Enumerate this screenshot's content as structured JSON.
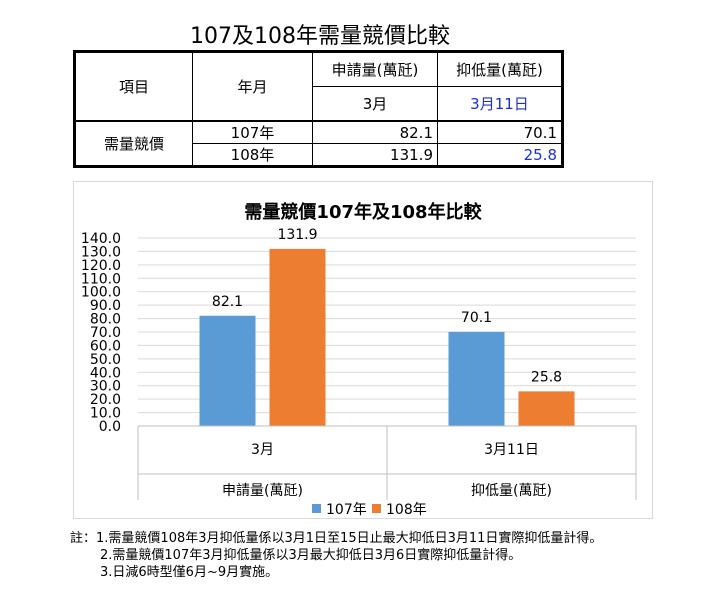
{
  "page": {
    "title": "107及108年需量競價比較"
  },
  "table": {
    "header": {
      "item": "項目",
      "month": "年月",
      "col1": "申請量(萬瓩)",
      "col2": "抑低量(萬瓩)"
    },
    "subheader": {
      "col1": "3月",
      "col2": "3月11日"
    },
    "row_label": "需量競價",
    "rows": [
      {
        "year": "107年",
        "v1": "82.1",
        "v2": "70.1"
      },
      {
        "year": "108年",
        "v1": "131.9",
        "v2": "25.8"
      }
    ]
  },
  "chart_data": {
    "type": "bar",
    "title": "需量競價107年及108年比較",
    "categories": [
      "3月",
      "3月11日"
    ],
    "group_labels": [
      "申請量(萬瓩)",
      "抑低量(萬瓩)"
    ],
    "series": [
      {
        "name": "107年",
        "values": [
          82.1,
          70.1
        ],
        "color": "#5b9bd5"
      },
      {
        "name": "108年",
        "values": [
          131.9,
          25.8
        ],
        "color": "#ed7d31"
      }
    ],
    "ylim": [
      0,
      140
    ],
    "ytick_step": 10,
    "grid": true,
    "legend_position": "bottom"
  },
  "notes": {
    "prefix": "註：",
    "lines": [
      "1.需量競價108年3月抑低量係以3月1日至15日止最大抑低日3月11日實際抑低量計得。",
      "2.需量競價107年3月抑低量係以3月最大抑低日3月6日實際抑低量計得。",
      "3.日減6時型僅6月~9月實施。"
    ]
  }
}
